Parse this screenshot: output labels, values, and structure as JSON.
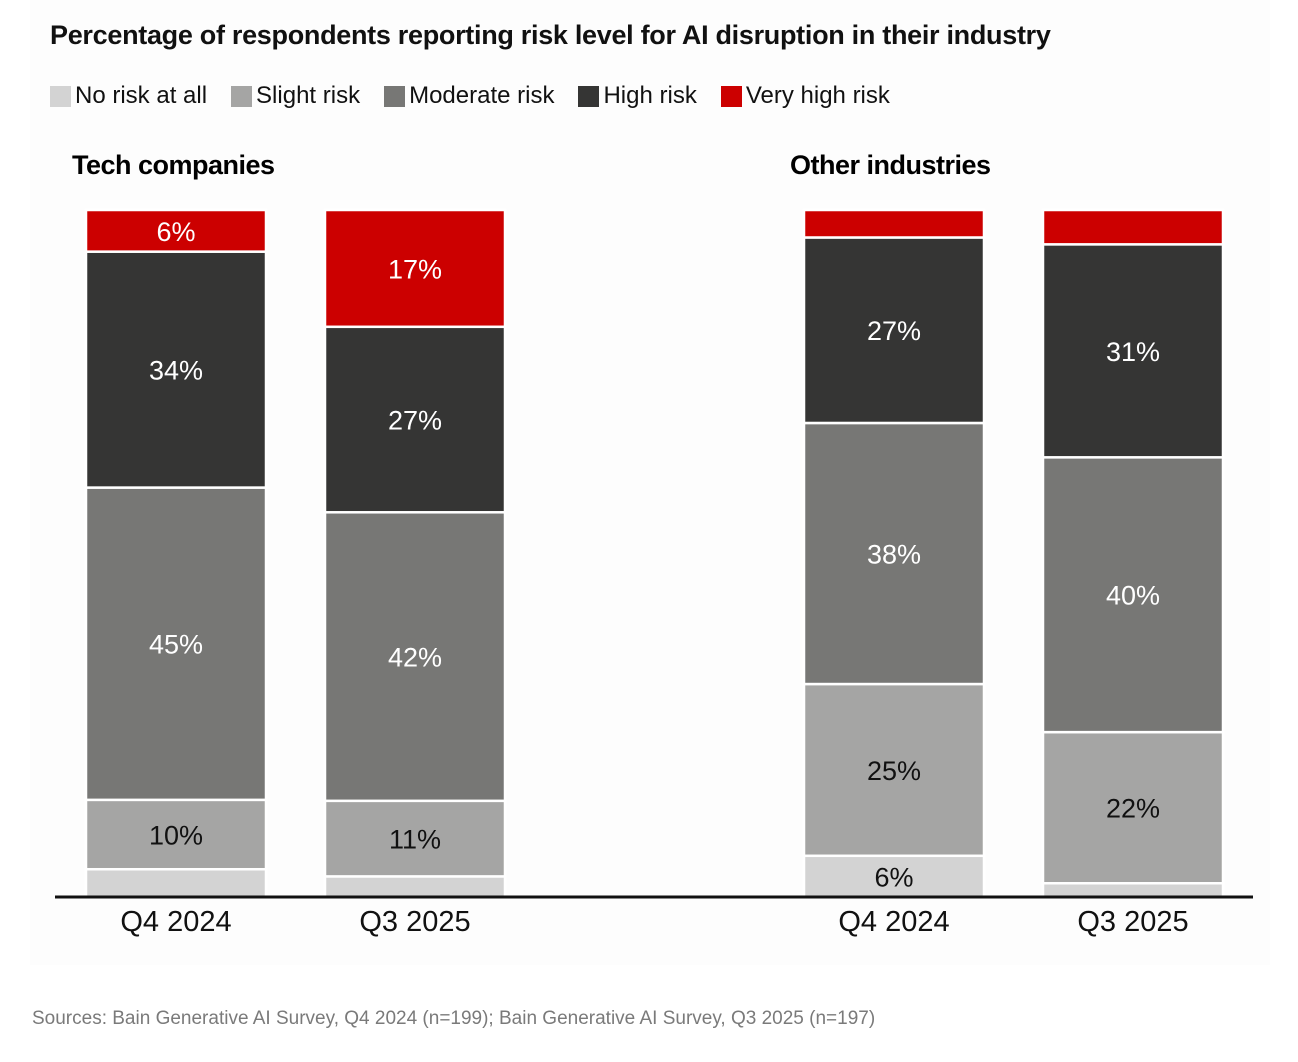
{
  "title": "Percentage of respondents reporting risk level for AI disruption in their industry",
  "legend": [
    {
      "label": "No risk at all",
      "color": "#d3d3d3"
    },
    {
      "label": "Slight risk",
      "color": "#a5a5a4"
    },
    {
      "label": "Moderate risk",
      "color": "#777775"
    },
    {
      "label": "High risk",
      "color": "#353534"
    },
    {
      "label": "Very high risk",
      "color": "#cc0000"
    }
  ],
  "source": "Sources: Bain Generative AI Survey, Q4 2024 (n=199); Bain Generative AI Survey, Q3 2025 (n=197)",
  "chart_data": {
    "type": "bar",
    "stacked": true,
    "title": "Percentage of respondents reporting risk level for AI disruption in their industry",
    "series_names": [
      "No risk at all",
      "Slight risk",
      "Moderate risk",
      "High risk",
      "Very high risk"
    ],
    "series_colors": [
      "#d3d3d3",
      "#a5a5a4",
      "#777775",
      "#353534",
      "#cc0000"
    ],
    "label_colors": [
      "#111111",
      "#111111",
      "#ffffff",
      "#ffffff",
      "#ffffff"
    ],
    "ylim": [
      0,
      100
    ],
    "grid": false,
    "legend_position": "top-left",
    "groups": [
      {
        "name": "Tech companies",
        "categories": [
          "Q4 2024",
          "Q3 2025"
        ],
        "series": [
          {
            "name": "No risk at all",
            "values": [
              4,
              3
            ],
            "labels": [
              "",
              ""
            ]
          },
          {
            "name": "Slight risk",
            "values": [
              10,
              11
            ],
            "labels": [
              "10%",
              "11%"
            ]
          },
          {
            "name": "Moderate risk",
            "values": [
              45,
              42
            ],
            "labels": [
              "45%",
              "42%"
            ]
          },
          {
            "name": "High risk",
            "values": [
              34,
              27
            ],
            "labels": [
              "34%",
              "27%"
            ]
          },
          {
            "name": "Very high risk",
            "values": [
              6,
              17
            ],
            "labels": [
              "6%",
              "17%"
            ]
          }
        ]
      },
      {
        "name": "Other industries",
        "categories": [
          "Q4 2024",
          "Q3 2025"
        ],
        "series": [
          {
            "name": "No risk at all",
            "values": [
              6,
              2
            ],
            "labels": [
              "6%",
              ""
            ]
          },
          {
            "name": "Slight risk",
            "values": [
              25,
              22
            ],
            "labels": [
              "25%",
              "22%"
            ]
          },
          {
            "name": "Moderate risk",
            "values": [
              38,
              40
            ],
            "labels": [
              "38%",
              "40%"
            ]
          },
          {
            "name": "High risk",
            "values": [
              27,
              31
            ],
            "labels": [
              "27%",
              "31%"
            ]
          },
          {
            "name": "Very high risk",
            "values": [
              4,
              5
            ],
            "labels": [
              "",
              ""
            ]
          }
        ]
      }
    ]
  }
}
